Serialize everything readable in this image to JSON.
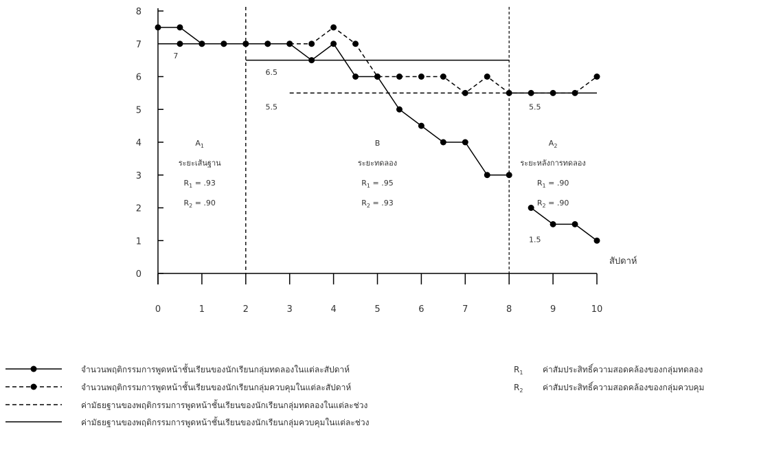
{
  "chart_data": {
    "type": "line",
    "x_axis": {
      "label": "สัปดาห์",
      "min": 0,
      "max": 10,
      "ticks": [
        0,
        1,
        2,
        3,
        4,
        5,
        6,
        7,
        8,
        9,
        10
      ]
    },
    "y_axis": {
      "min": 0,
      "max": 8,
      "ticks": [
        0,
        1,
        2,
        3,
        4,
        5,
        6,
        7,
        8
      ]
    },
    "grid": false,
    "phase_boundaries": [
      2,
      8
    ],
    "series": [
      {
        "key": "experimental",
        "style": "solid-marker",
        "points": [
          [
            0,
            7.5
          ],
          [
            0.5,
            7.5
          ],
          [
            1,
            7
          ],
          [
            1.5,
            7
          ],
          [
            2,
            7
          ],
          [
            2.5,
            7
          ],
          [
            3,
            7
          ],
          [
            3.5,
            6.5
          ],
          [
            4,
            7
          ],
          [
            4.5,
            6
          ],
          [
            5,
            6
          ],
          [
            5.5,
            5
          ],
          [
            6,
            4.5
          ],
          [
            6.5,
            4
          ],
          [
            7,
            4
          ],
          [
            7.5,
            3
          ],
          [
            8,
            3
          ]
        ]
      },
      {
        "key": "control",
        "style": "dashed-marker",
        "points": [
          [
            0.5,
            7
          ],
          [
            1,
            7
          ],
          [
            1.5,
            7
          ],
          [
            2,
            7
          ],
          [
            2.5,
            7
          ],
          [
            3,
            7
          ],
          [
            3.5,
            7
          ],
          [
            4,
            7.5
          ],
          [
            4.5,
            7
          ],
          [
            5,
            6
          ],
          [
            5.5,
            6
          ],
          [
            6,
            6
          ],
          [
            6.5,
            6
          ],
          [
            7,
            5.5
          ],
          [
            7.5,
            6
          ],
          [
            8,
            5.5
          ],
          [
            8.5,
            5.5
          ],
          [
            9,
            5.5
          ],
          [
            9.5,
            5.5
          ],
          [
            10,
            6
          ]
        ]
      },
      {
        "key": "experimental_late",
        "style": "solid-marker",
        "points": [
          [
            8.5,
            2
          ],
          [
            9,
            1.5
          ],
          [
            9.5,
            1.5
          ],
          [
            10,
            1
          ]
        ]
      }
    ],
    "median_lines": [
      {
        "style": "solid",
        "x": [
          0,
          2
        ],
        "y": 7
      },
      {
        "style": "solid",
        "x": [
          2,
          8
        ],
        "y": 6.5
      },
      {
        "style": "dashed",
        "x": [
          3,
          8
        ],
        "y": 5.5
      },
      {
        "style": "solid",
        "x": [
          8,
          10
        ],
        "y": 5.5
      }
    ],
    "value_labels": [
      {
        "text": "7",
        "x": 0.35,
        "y": 6.55
      },
      {
        "text": "6.5",
        "x": 2.45,
        "y": 6.05
      },
      {
        "text": "5.5",
        "x": 2.45,
        "y": 5.0
      },
      {
        "text": "5.5",
        "x": 8.45,
        "y": 5.0
      },
      {
        "text": "1.5",
        "x": 8.45,
        "y": 0.95
      }
    ],
    "phases": [
      {
        "name": "A",
        "sub": "1",
        "label": "ระยะเส้นฐาน",
        "r1": ".93",
        "r2": ".90",
        "x": 0.95
      },
      {
        "name": "B",
        "sub": "",
        "label": "ระยะทดลอง",
        "r1": ".95",
        "r2": ".93",
        "x": 5.0
      },
      {
        "name": "A",
        "sub": "2",
        "label": "ระยะหลังการทดลอง",
        "r1": ".90",
        "r2": ".90",
        "x": 9.0
      }
    ],
    "legend": {
      "entries": [
        {
          "style": "solid-marker",
          "text": "จำนวนพฤติกรรมการพูดหน้าชั้นเรียนของนักเรียนกลุ่มทดลองในแต่ละสัปดาห์"
        },
        {
          "style": "dashed-marker",
          "text": "จำนวนพฤติกรรมการพูดหน้าชั้นเรียนของนักเรียนกลุ่มควบคุมในแต่ละสัปดาห์"
        },
        {
          "style": "dashed",
          "text": "ค่ามัธยฐานของพฤติกรรมการพูดหน้าชั้นเรียนของนักเรียนกลุ่มทดลองในแต่ละช่วง"
        },
        {
          "style": "solid",
          "text": "ค่ามัธยฐานของพฤติกรรมการพูดหน้าชั้นเรียนของนักเรียนกลุ่มควบคุมในแต่ละช่วง"
        }
      ],
      "r_defs": [
        {
          "sub": "1",
          "text": "ค่าสัมประสิทธิ์ความสอดคล้องของกลุ่มทดลอง"
        },
        {
          "sub": "2",
          "text": "ค่าสัมประสิทธิ์ความสอดคล้องของกลุ่มควบคุม"
        }
      ]
    }
  }
}
